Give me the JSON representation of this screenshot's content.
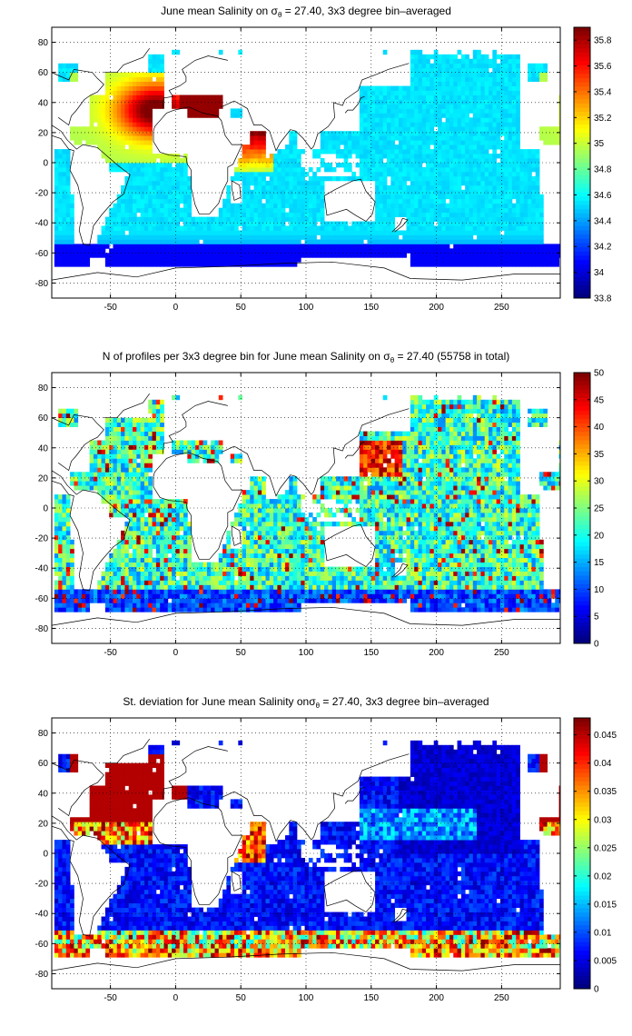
{
  "chart_data": [
    {
      "type": "heatmap",
      "title_parts": [
        "June mean Salinity on σ",
        "θ",
        " = 27.40, 3x3 degree bin–averaged"
      ],
      "xlim": [
        -95,
        295
      ],
      "ylim": [
        -90,
        90
      ],
      "xticks": [
        -50,
        0,
        50,
        100,
        150,
        200,
        250
      ],
      "yticks": [
        80,
        60,
        40,
        20,
        0,
        -20,
        -40,
        -60,
        -80
      ],
      "grid": "dotted",
      "colorbar": {
        "min": 33.8,
        "max": 35.9,
        "ticks": [
          35.8,
          35.6,
          35.4,
          35.2,
          35,
          34.8,
          34.6,
          34.4,
          34.2,
          34,
          33.8
        ]
      },
      "bin_degrees": 3,
      "description_values": {
        "atlantic_subtropical_max": 35.7,
        "mediterranean_outflow": 35.9,
        "arabian_sea": 35.4,
        "pacific_typical": 34.5,
        "southern_ocean": 34.1
      }
    },
    {
      "type": "heatmap",
      "title_parts": [
        "N of profiles per 3x3 degree bin for June mean Salinity on σ",
        "θ",
        " = 27.40 (55758 in total)"
      ],
      "xlim": [
        -95,
        295
      ],
      "ylim": [
        -90,
        90
      ],
      "xticks": [
        -50,
        0,
        50,
        100,
        150,
        200,
        250
      ],
      "yticks": [
        80,
        60,
        40,
        20,
        0,
        -20,
        -40,
        -60,
        -80
      ],
      "grid": "dotted",
      "colorbar": {
        "min": 0,
        "max": 50,
        "ticks": [
          50,
          45,
          40,
          35,
          30,
          25,
          20,
          15,
          10,
          5,
          0
        ]
      },
      "bin_degrees": 3,
      "total_profiles": 55758
    },
    {
      "type": "heatmap",
      "title_parts": [
        "St. deviation for June mean Salinity onσ",
        "θ",
        " = 27.40, 3x3 degree bin–averaged"
      ],
      "xlim": [
        -95,
        295
      ],
      "ylim": [
        -90,
        90
      ],
      "xticks": [
        -50,
        0,
        50,
        100,
        150,
        200,
        250
      ],
      "yticks": [
        80,
        60,
        40,
        20,
        0,
        -20,
        -40,
        -60,
        -80
      ],
      "grid": "dotted",
      "colorbar": {
        "min": 0,
        "max": 0.048,
        "ticks": [
          0.045,
          0.04,
          0.035,
          0.03,
          0.025,
          0.02,
          0.015,
          0.01,
          0.005,
          0
        ]
      },
      "bin_degrees": 3
    }
  ],
  "colors": {
    "background": "#ffffff",
    "axis": "#000000",
    "grid": "#000000",
    "land": "#ffffff",
    "coast": "#000000"
  },
  "colormap": "jet"
}
